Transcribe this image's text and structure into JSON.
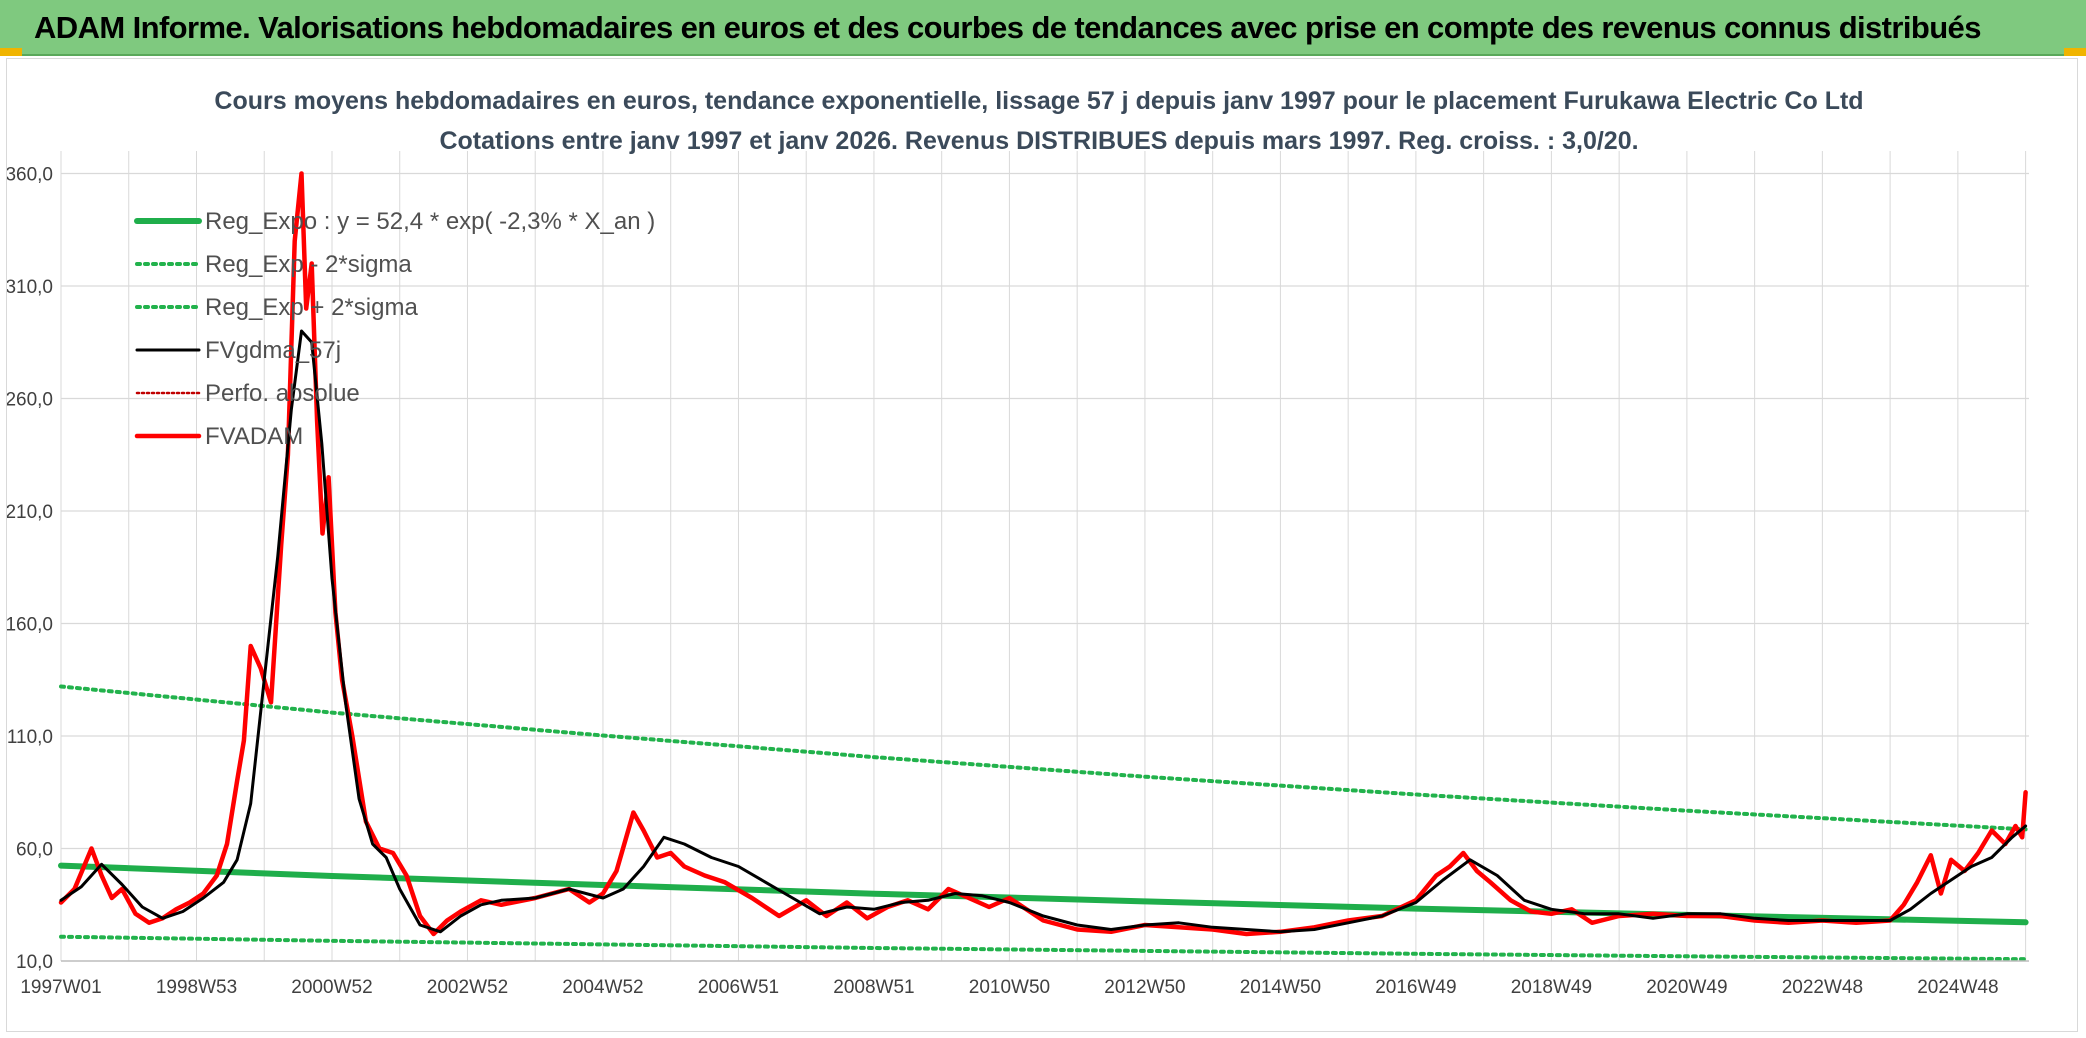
{
  "banner": {
    "title": "ADAM Informe. Valorisations hebdomadaires en euros et des courbes de tendances avec prise en compte des revenus connus distribués"
  },
  "chart_data": {
    "type": "line",
    "title": "Cours moyens hebdomadaires en euros, tendance exponentielle, lissage 57 j depuis janv 1997 pour le placement Furukawa Electric Co Ltd",
    "subtitle": "Cotations entre janv 1997 et janv 2026. Revenus DISTRIBUES depuis mars 1997. Reg. croiss. : 3,0/20.",
    "xlabel": "",
    "ylabel": "",
    "ylim": [
      10,
      370
    ],
    "xlim": [
      1997.0,
      2026.05
    ],
    "y_ticks": [
      10,
      60,
      110,
      160,
      210,
      260,
      310,
      360
    ],
    "y_tick_labels": [
      "10,0",
      "60,0",
      "110,0",
      "160,0",
      "210,0",
      "260,0",
      "310,0",
      "360,0"
    ],
    "x_ticks": [
      1997.0,
      1999.0,
      2001.0,
      2003.0,
      2005.0,
      2007.0,
      2009.0,
      2011.0,
      2013.0,
      2015.0,
      2017.0,
      2019.0,
      2021.0,
      2023.0,
      2025.0
    ],
    "x_tick_labels": [
      "1997W01",
      "1998W53",
      "2000W52",
      "2002W52",
      "2004W52",
      "2006W51",
      "2008W51",
      "2010W50",
      "2012W50",
      "2014W50",
      "2016W49",
      "2018W49",
      "2020W49",
      "2022W48",
      "2024W48"
    ],
    "grid": true,
    "legend_position": "top-left",
    "colors": {
      "reg_expo": "#1fae4b",
      "sigma": "#22b24c",
      "gdma": "#000000",
      "perfo": "#c00000",
      "fvadam": "#ff0000",
      "grid": "#d9d9d9"
    },
    "series": [
      {
        "name": "Reg_Expo : y = 52,4 * exp( -2,3% *  X_an )",
        "style": "solid-thick",
        "x": [
          1997.0,
          2001.0,
          2005.0,
          2009.0,
          2013.0,
          2017.0,
          2021.0,
          2026.0
        ],
        "values": [
          52.4,
          47.8,
          43.8,
          39.9,
          36.5,
          33.3,
          30.5,
          27.2
        ]
      },
      {
        "name": "Reg_Exp - 2*sigma",
        "style": "dotted",
        "x": [
          1997.0,
          2001.0,
          2005.0,
          2009.0,
          2013.0,
          2017.0,
          2021.0,
          2026.0
        ],
        "values": [
          20.8,
          19.0,
          17.4,
          15.8,
          14.5,
          13.2,
          12.1,
          10.8
        ]
      },
      {
        "name": "Reg_Exp + 2*sigma",
        "style": "dotted",
        "x": [
          1997.0,
          2001.0,
          2005.0,
          2009.0,
          2013.0,
          2017.0,
          2021.0,
          2026.0
        ],
        "values": [
          132.0,
          120.4,
          110.2,
          100.6,
          91.9,
          84.0,
          76.8,
          68.5
        ]
      },
      {
        "name": "FVgdma_57j",
        "style": "solid",
        "x": [
          1997.0,
          1997.3,
          1997.6,
          1997.9,
          1998.2,
          1998.5,
          1998.8,
          1999.1,
          1999.4,
          1999.6,
          1999.8,
          2000.0,
          2000.2,
          2000.4,
          2000.55,
          2000.7,
          2000.85,
          2001.0,
          2001.2,
          2001.4,
          2001.6,
          2001.8,
          2002.0,
          2002.3,
          2002.6,
          2002.9,
          2003.2,
          2003.5,
          2004.0,
          2004.5,
          2005.0,
          2005.3,
          2005.6,
          2005.9,
          2006.2,
          2006.6,
          2007.0,
          2007.4,
          2007.8,
          2008.2,
          2008.6,
          2009.0,
          2009.4,
          2009.8,
          2010.2,
          2010.6,
          2011.0,
          2011.5,
          2012.0,
          2012.5,
          2013.0,
          2013.5,
          2014.0,
          2014.5,
          2015.0,
          2015.5,
          2016.0,
          2016.5,
          2017.0,
          2017.4,
          2017.8,
          2018.2,
          2018.6,
          2019.0,
          2019.5,
          2020.0,
          2020.5,
          2021.0,
          2021.5,
          2022.0,
          2022.5,
          2023.0,
          2023.5,
          2024.0,
          2024.3,
          2024.6,
          2024.9,
          2025.2,
          2025.5,
          2025.8,
          2026.0
        ],
        "values": [
          37,
          43,
          53,
          44,
          34,
          29,
          32,
          38,
          45,
          55,
          80,
          135,
          190,
          255,
          290,
          285,
          240,
          180,
          125,
          82,
          62,
          56,
          42,
          26,
          23,
          30,
          35,
          37,
          38,
          42,
          38,
          42,
          52,
          65,
          62,
          56,
          52,
          45,
          38,
          31,
          34,
          33,
          36,
          37,
          40,
          39,
          36,
          30,
          26,
          24,
          26,
          27,
          25,
          24,
          23,
          24,
          27,
          30,
          36,
          46,
          55,
          48,
          37,
          33,
          31,
          31,
          29,
          31,
          31,
          29,
          28,
          28,
          28,
          28,
          33,
          40,
          46,
          52,
          56,
          65,
          70
        ]
      },
      {
        "name": "Perfo. absolue",
        "style": "dotted",
        "x": [],
        "values": []
      },
      {
        "name": "FVADAM",
        "style": "solid-thick",
        "x": [
          1997.0,
          1997.2,
          1997.45,
          1997.6,
          1997.75,
          1997.9,
          1998.1,
          1998.3,
          1998.5,
          1998.7,
          1998.9,
          1999.1,
          1999.3,
          1999.45,
          1999.6,
          1999.7,
          1999.8,
          1999.95,
          2000.1,
          2000.25,
          2000.35,
          2000.45,
          2000.55,
          2000.62,
          2000.7,
          2000.78,
          2000.86,
          2000.95,
          2001.05,
          2001.15,
          2001.3,
          2001.5,
          2001.7,
          2001.9,
          2002.1,
          2002.3,
          2002.5,
          2002.7,
          2002.9,
          2003.2,
          2003.5,
          2004.0,
          2004.5,
          2004.8,
          2005.0,
          2005.2,
          2005.45,
          2005.6,
          2005.8,
          2006.0,
          2006.2,
          2006.5,
          2006.8,
          2007.2,
          2007.6,
          2008.0,
          2008.3,
          2008.6,
          2008.9,
          2009.2,
          2009.5,
          2009.8,
          2010.1,
          2010.4,
          2010.7,
          2011.0,
          2011.5,
          2012.0,
          2012.5,
          2013.0,
          2013.5,
          2014.0,
          2014.5,
          2015.0,
          2015.5,
          2016.0,
          2016.5,
          2017.0,
          2017.3,
          2017.5,
          2017.7,
          2017.9,
          2018.1,
          2018.4,
          2018.7,
          2019.0,
          2019.3,
          2019.6,
          2020.0,
          2020.5,
          2021.0,
          2021.5,
          2022.0,
          2022.5,
          2023.0,
          2023.5,
          2024.0,
          2024.2,
          2024.4,
          2024.6,
          2024.75,
          2024.9,
          2025.1,
          2025.3,
          2025.5,
          2025.7,
          2025.85,
          2025.95,
          2026.0
        ],
        "values": [
          36,
          42,
          60,
          48,
          38,
          42,
          31,
          27,
          29,
          33,
          36,
          40,
          48,
          62,
          90,
          108,
          150,
          140,
          125,
          195,
          235,
          330,
          360,
          300,
          320,
          250,
          200,
          225,
          165,
          135,
          110,
          72,
          60,
          58,
          48,
          30,
          22,
          28,
          32,
          37,
          35,
          38,
          42,
          36,
          40,
          50,
          76,
          68,
          56,
          58,
          52,
          48,
          45,
          38,
          30,
          37,
          30,
          36,
          29,
          34,
          37,
          33,
          42,
          38,
          34,
          38,
          28,
          24,
          23,
          26,
          25,
          24,
          22,
          23,
          25,
          28,
          30,
          37,
          48,
          52,
          58,
          50,
          45,
          37,
          32,
          31,
          33,
          27,
          30,
          31,
          30,
          30,
          28,
          27,
          28,
          27,
          28,
          35,
          45,
          57,
          40,
          55,
          50,
          58,
          68,
          62,
          70,
          65,
          85
        ]
      }
    ]
  }
}
